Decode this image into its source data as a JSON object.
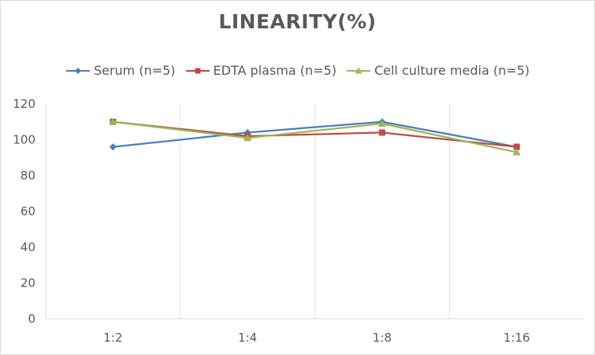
{
  "chart_data": {
    "type": "line",
    "title": "LINEARITY(%)",
    "xlabel": "",
    "ylabel": "",
    "categories": [
      "1:2",
      "1:4",
      "1:8",
      "1:16"
    ],
    "ylim": [
      0,
      120
    ],
    "yticks": [
      0,
      20,
      40,
      60,
      80,
      100,
      120
    ],
    "grid": "vertical",
    "legend_position": "top",
    "series": [
      {
        "name": "Serum (n=5)",
        "values": [
          96,
          104,
          110,
          96
        ],
        "color": "#4a7ebb",
        "marker": "diamond"
      },
      {
        "name": "EDTA plasma (n=5)",
        "values": [
          110,
          102,
          104,
          96
        ],
        "color": "#be4b48",
        "marker": "square"
      },
      {
        "name": "Cell culture media (n=5)",
        "values": [
          110,
          101,
          109,
          93
        ],
        "color": "#98b954",
        "marker": "triangle"
      }
    ]
  }
}
